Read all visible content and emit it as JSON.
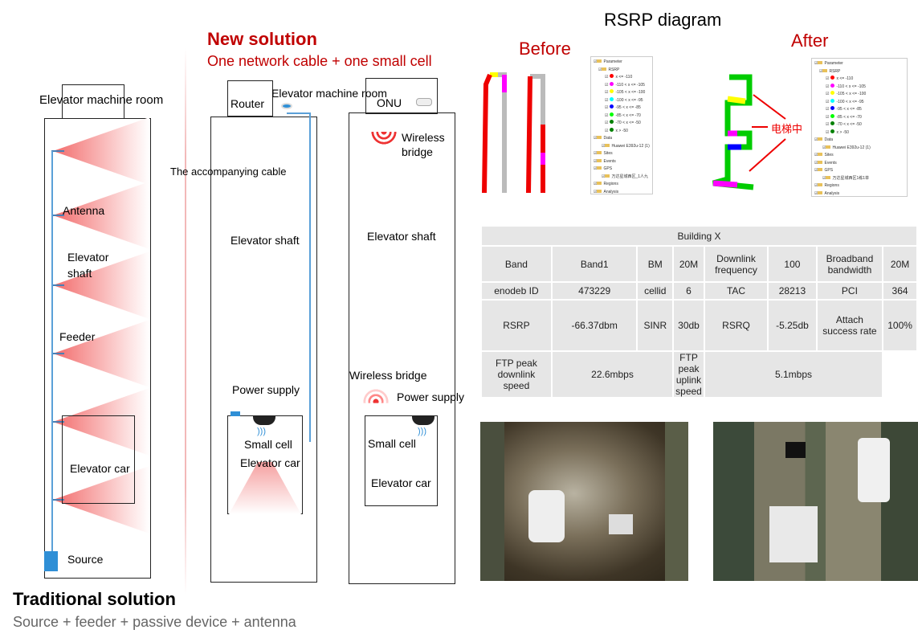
{
  "traditional": {
    "title": "Traditional solution",
    "subtitle": "Source + feeder + passive device + antenna",
    "labels": {
      "machine_room": "Elevator machine  room",
      "antenna": "Antenna",
      "shaft": "Elevator\nshaft",
      "feeder": "Feeder",
      "car": "Elevator car",
      "source": "Source"
    }
  },
  "new_solution": {
    "title": "New solution",
    "subtitle": "One network cable + one small cell",
    "option1": {
      "router": "Router",
      "machine_room": "Elevator machine room",
      "cable": "The accompanying cable",
      "shaft": "Elevator shaft",
      "power": "Power supply",
      "small_cell": "Small cell",
      "car": "Elevator car"
    },
    "option2": {
      "onu": "ONU",
      "wireless_bridge_top": "Wireless\nbridge",
      "shaft": "Elevator shaft",
      "wireless_bridge_bottom": "Wireless bridge",
      "power": "Power supply",
      "small_cell": "Small cell",
      "car": "Elevator car"
    }
  },
  "rsrp": {
    "title": "RSRP diagram",
    "before": "Before",
    "after": "After",
    "after_annotation": "电梯中",
    "legend": {
      "parameter": "Parameter",
      "rsrp": "RSRP",
      "ranges": [
        {
          "label": "x <= -110",
          "color": "#ff0000"
        },
        {
          "label": "-110 < x <= -105",
          "color": "#ff00ff"
        },
        {
          "label": "-105 < x <= -100",
          "color": "#ffff00"
        },
        {
          "label": "-100 < x <= -95",
          "color": "#00ffff"
        },
        {
          "label": "-95 < x <= -85",
          "color": "#0000ff"
        },
        {
          "label": "-85 < x <= -70",
          "color": "#00ff00"
        },
        {
          "label": "-70 < x <= -50",
          "color": "#008000"
        },
        {
          "label": "x > -50",
          "color": "#008000"
        }
      ],
      "data": "Data",
      "device": "Huawei E392u-12 (1)",
      "sites": "Sites",
      "events": "Events",
      "gps": "GPS",
      "gps_item_before": "万达星城西区_1人九",
      "gps_item_after": "万达星城西区1栋1单",
      "regions": "Regions",
      "analysis": "Analysis"
    }
  },
  "table": {
    "title": "Building X",
    "rows": [
      [
        "Band",
        "Band1",
        "BM",
        "20M",
        "Downlink frequency",
        "100",
        "Broadband bandwidth",
        "20M"
      ],
      [
        "enodeb  ID",
        "473229",
        "cellid",
        "6",
        "TAC",
        "28213",
        "PCI",
        "364"
      ],
      [
        "RSRP",
        "-66.37dbm",
        "SINR",
        "30db",
        "RSRQ",
        "-5.25db",
        "Attach success rate",
        "100%"
      ]
    ],
    "last_row": [
      "FTP peak downlink speed",
      "22.6mbps",
      "FTP peak uplink speed",
      "5.1mbps"
    ]
  },
  "colors": {
    "accent_red": "#c00000",
    "cable_blue": "#5aa0d8",
    "source_blue": "#2f8fd6"
  }
}
